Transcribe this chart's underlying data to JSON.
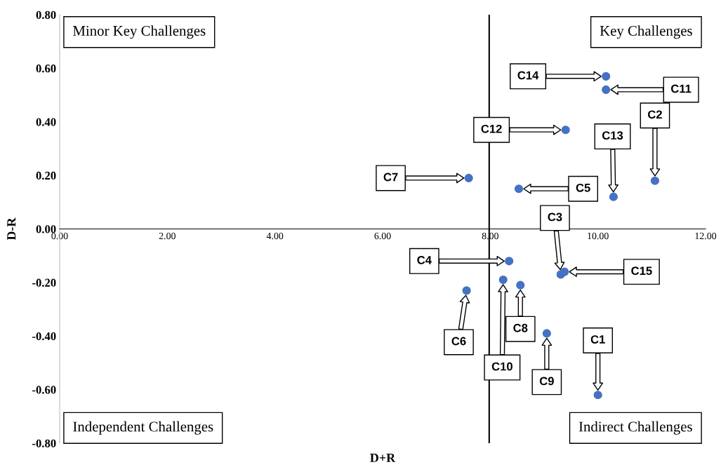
{
  "chart_data": {
    "type": "scatter",
    "xlabel": "D+R",
    "ylabel": "D-R",
    "x": [
      10.0,
      11.06,
      9.31,
      8.35,
      8.53,
      7.56,
      7.6,
      8.56,
      9.05,
      8.24,
      10.15,
      9.4,
      10.29,
      10.15,
      9.38
    ],
    "series": [
      {
        "color": "#4472c4",
        "values": [
          -0.62,
          0.18,
          -0.17,
          -0.12,
          0.15,
          -0.23,
          0.19,
          -0.21,
          -0.39,
          -0.19,
          0.52,
          0.37,
          0.12,
          0.57,
          -0.16
        ]
      }
    ],
    "marker": "circle",
    "grid": false,
    "xlim": [
      0,
      12
    ],
    "ylim": [
      -0.8,
      0.8
    ],
    "xticks": [
      {
        "value": 0,
        "label": "0.00"
      },
      {
        "value": 2,
        "label": "2.00"
      },
      {
        "value": 4,
        "label": "4.00"
      },
      {
        "value": 6,
        "label": "6.00"
      },
      {
        "value": 8,
        "label": "8.00"
      },
      {
        "value": 10,
        "label": "10.00"
      },
      {
        "value": 12,
        "label": "12.00"
      }
    ],
    "yticks": [
      {
        "value": -0.8,
        "label": "-0.80"
      },
      {
        "value": -0.6,
        "label": "-0.60"
      },
      {
        "value": -0.4,
        "label": "-0.40"
      },
      {
        "value": -0.2,
        "label": "-0.20"
      },
      {
        "value": 0,
        "label": "0.00"
      },
      {
        "value": 0.2,
        "label": "0.20"
      },
      {
        "value": 0.4,
        "label": "0.40"
      },
      {
        "value": 0.6,
        "label": "0.60"
      },
      {
        "value": 0.8,
        "label": "0.80"
      }
    ],
    "ref_lines": [
      {
        "axis": "x",
        "value": 7.98,
        "color": "#000000"
      }
    ],
    "annotations": [
      "Minor Key Challenges",
      "Key Challenges",
      "Independent Challenges",
      "Indirect Challenges",
      "C1",
      "C2",
      "C3",
      "C4",
      "C5",
      "C6",
      "C7",
      "C8",
      "C9",
      "C10",
      "C11",
      "C12",
      "C13",
      "C14",
      "C15"
    ]
  }
}
